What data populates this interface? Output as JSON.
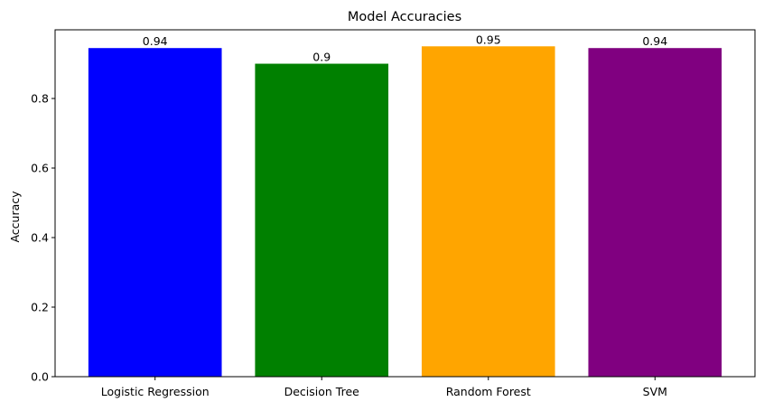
{
  "chart_data": {
    "type": "bar",
    "title": "Model Accuracies",
    "xlabel": "",
    "ylabel": "Accuracy",
    "categories": [
      "Logistic Regression",
      "Decision Tree",
      "Random Forest",
      "SVM"
    ],
    "values": [
      0.945,
      0.9,
      0.95,
      0.945
    ],
    "data_labels": [
      "0.94",
      "0.9",
      "0.95",
      "0.94"
    ],
    "colors": [
      "#0000ff",
      "#008000",
      "#ffa500",
      "#800080"
    ],
    "ylim": [
      0,
      0.9975
    ],
    "yticks": [
      0.0,
      0.2,
      0.4,
      0.6,
      0.8
    ],
    "ytick_labels": [
      "0.0",
      "0.2",
      "0.4",
      "0.6",
      "0.8"
    ],
    "grid": false,
    "legend": "none"
  }
}
